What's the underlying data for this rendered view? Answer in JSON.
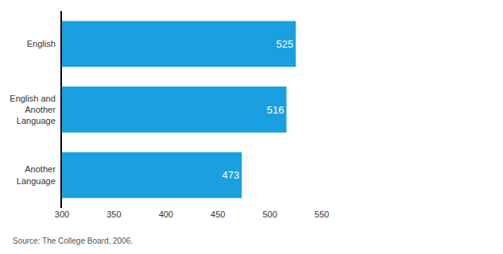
{
  "chart_data": {
    "type": "bar",
    "orientation": "horizontal",
    "categories": [
      "English",
      "English and Another Language",
      "Another Language"
    ],
    "values": [
      525,
      516,
      473
    ],
    "color": "#1aa0e0",
    "xlim": [
      300,
      550
    ],
    "xticks": [
      300,
      350,
      400,
      450,
      500,
      550
    ],
    "data_labels": true,
    "grid": false,
    "annotations": [
      "Source: The College Board, 2006."
    ]
  }
}
